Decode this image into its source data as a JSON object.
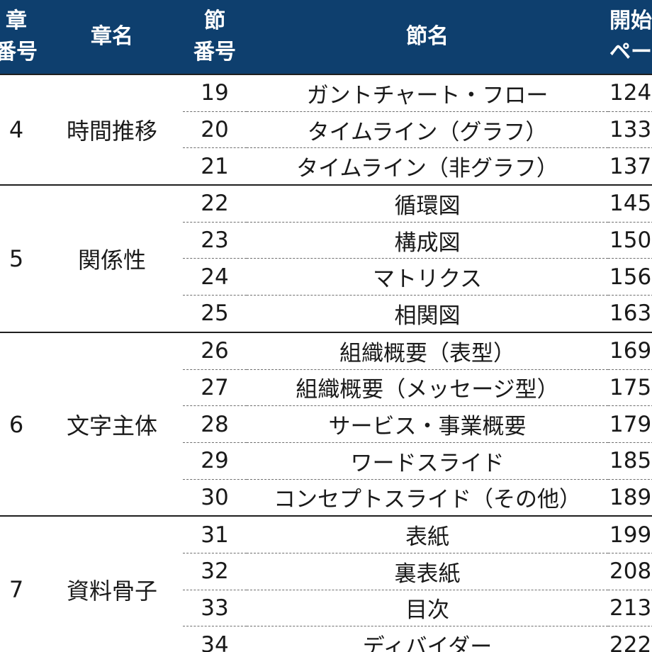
{
  "header": {
    "chapter_number": [
      "章",
      "番号"
    ],
    "chapter_name": "章名",
    "section_number": [
      "節",
      "番号"
    ],
    "section_name": "節名",
    "start_page": [
      "開始",
      "ペー"
    ]
  },
  "groups": [
    {
      "chapter": "4",
      "name": "時間推移",
      "sections": [
        {
          "no": "19",
          "name": "ガントチャート・フロー",
          "page": "124"
        },
        {
          "no": "20",
          "name": "タイムライン（グラフ）",
          "page": "133"
        },
        {
          "no": "21",
          "name": "タイムライン（非グラフ）",
          "page": "137"
        }
      ]
    },
    {
      "chapter": "5",
      "name": "関係性",
      "sections": [
        {
          "no": "22",
          "name": "循環図",
          "page": "145"
        },
        {
          "no": "23",
          "name": "構成図",
          "page": "150"
        },
        {
          "no": "24",
          "name": "マトリクス",
          "page": "156"
        },
        {
          "no": "25",
          "name": "相関図",
          "page": "163"
        }
      ]
    },
    {
      "chapter": "6",
      "name": "文字主体",
      "sections": [
        {
          "no": "26",
          "name": "組織概要（表型）",
          "page": "169"
        },
        {
          "no": "27",
          "name": "組織概要（メッセージ型）",
          "page": "175"
        },
        {
          "no": "28",
          "name": "サービス・事業概要",
          "page": "179"
        },
        {
          "no": "29",
          "name": "ワードスライド",
          "page": "185"
        },
        {
          "no": "30",
          "name": "コンセプトスライド（その他）",
          "page": "189"
        }
      ]
    },
    {
      "chapter": "7",
      "name": "資料骨子",
      "sections": [
        {
          "no": "31",
          "name": "表紙",
          "page": "199"
        },
        {
          "no": "32",
          "name": "裏表紙",
          "page": "208"
        },
        {
          "no": "33",
          "name": "目次",
          "page": "213"
        },
        {
          "no": "34",
          "name": "ディバイダー",
          "page": "222"
        }
      ]
    }
  ]
}
